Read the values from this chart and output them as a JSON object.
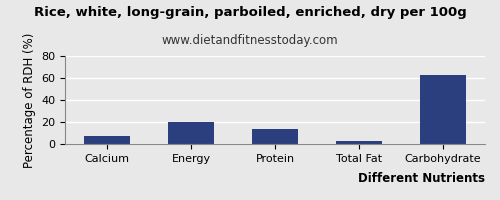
{
  "title": "Rice, white, long-grain, parboiled, enriched, dry per 100g",
  "subtitle": "www.dietandfitnesstoday.com",
  "categories": [
    "Calcium",
    "Energy",
    "Protein",
    "Total Fat",
    "Carbohydrate"
  ],
  "values": [
    7,
    20,
    14,
    3,
    63
  ],
  "bar_color": "#2b3f7e",
  "xlabel": "Different Nutrients",
  "ylabel": "Percentage of RDH (%)",
  "ylim": [
    0,
    80
  ],
  "yticks": [
    0,
    20,
    40,
    60,
    80
  ],
  "background_color": "#e8e8e8",
  "plot_background": "#e8e8e8",
  "title_fontsize": 9.5,
  "subtitle_fontsize": 8.5,
  "axis_label_fontsize": 8.5,
  "tick_fontsize": 8,
  "grid_color": "#ffffff",
  "border_color": "#888888"
}
